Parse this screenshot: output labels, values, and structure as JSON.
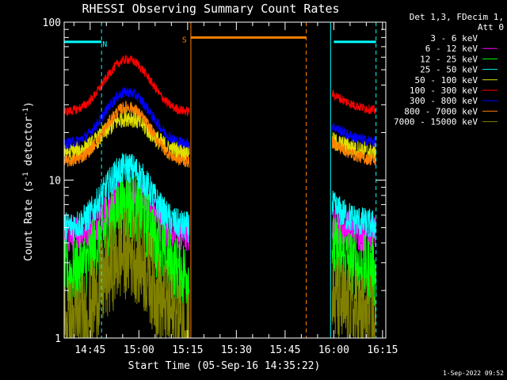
{
  "chart_data": {
    "type": "line",
    "title": "RHESSI Observing Summary Count Rates",
    "xlabel": "Start Time (05-Sep-16 14:35:22)",
    "ylabel_main": "Count Rate (s",
    "ylabel_sup": "-1",
    "ylabel_rest": " detector",
    "ylabel_sup2": "-1",
    "ylabel_close": ")",
    "yscale": "log",
    "ylim": [
      1,
      100
    ],
    "xlim_min": [
      637,
      736
    ],
    "y_ticks": [
      {
        "value": 1,
        "label": "1"
      },
      {
        "value": 10,
        "label": "10"
      },
      {
        "value": 100,
        "label": "100"
      }
    ],
    "x_ticks": [
      {
        "value_min": 645,
        "label": "14:45"
      },
      {
        "value_min": 660,
        "label": "15:00"
      },
      {
        "value_min": 675,
        "label": "15:15"
      },
      {
        "value_min": 690,
        "label": "15:30"
      },
      {
        "value_min": 705,
        "label": "15:45"
      },
      {
        "value_min": 720,
        "label": "16:00"
      },
      {
        "value_min": 735,
        "label": "16:15"
      }
    ],
    "legend_header": [
      "Det 1,3, FDecim 1,",
      "Att 0"
    ],
    "legend_placement": "right",
    "series": [
      {
        "name": "3 - 6 keV",
        "color": "#000000",
        "base": 2.0,
        "peak": 4.5,
        "noise": 0.55
      },
      {
        "name": "6 - 12 keV",
        "color": "#ff00ff",
        "base": 4.5,
        "peak": 8.0,
        "noise": 0.25
      },
      {
        "name": "12 - 25 keV",
        "color": "#00ff00",
        "base": 2.5,
        "peak": 7.0,
        "noise": 0.45
      },
      {
        "name": "25 - 50 keV",
        "color": "#00ffff",
        "base": 5.0,
        "peak": 12.0,
        "noise": 0.2
      },
      {
        "name": "50 - 100 keV",
        "color": "#e0e000",
        "base": 15.0,
        "peak": 25.0,
        "noise": 0.12
      },
      {
        "name": "100 - 300 keV",
        "color": "#ff0000",
        "base": 27.0,
        "peak": 58.0,
        "noise": 0.06
      },
      {
        "name": "300 - 800 keV",
        "color": "#0000ff",
        "base": 17.0,
        "peak": 36.0,
        "noise": 0.07
      },
      {
        "name": "800 - 7000 keV",
        "color": "#ff8000",
        "base": 13.0,
        "peak": 29.0,
        "noise": 0.08
      },
      {
        "name": "7000 - 15000 keV",
        "color": "#808000",
        "base": 1.2,
        "peak": 3.5,
        "noise": 0.6
      }
    ],
    "segments": [
      {
        "start_min": 637,
        "end_min": 675.5,
        "peak_min": 656.5,
        "width_min": 8.5
      },
      {
        "start_min": 719.5,
        "end_min": 733,
        "peak_min": 700,
        "width_min": 17
      }
    ],
    "annotations": {
      "night_bars": [
        {
          "start_min": 637,
          "end_min": 648.5,
          "label": "N",
          "y": 75,
          "color": "#00ffff",
          "label_at_min": 649.5
        },
        {
          "start_min": 720,
          "end_min": 733,
          "label": "",
          "y": 75,
          "color": "#00ffff",
          "label_at_min": null
        }
      ],
      "saa_bar": {
        "start_min": 676,
        "end_min": 711.5,
        "label": "S",
        "y": 80,
        "color": "#ff8000",
        "label_at_min": 674
      }
    },
    "vlines": [
      {
        "min": 648.5,
        "color": "#00ffff",
        "dash": true
      },
      {
        "min": 676,
        "color": "#ff8000",
        "dash": false
      },
      {
        "min": 711.5,
        "color": "#ff8000",
        "dash": true
      },
      {
        "min": 719,
        "color": "#00ffff",
        "dash": false
      },
      {
        "min": 733,
        "color": "#00ffff",
        "dash": true
      }
    ]
  },
  "footer_timestamp": "1-Sep-2022 09:52"
}
